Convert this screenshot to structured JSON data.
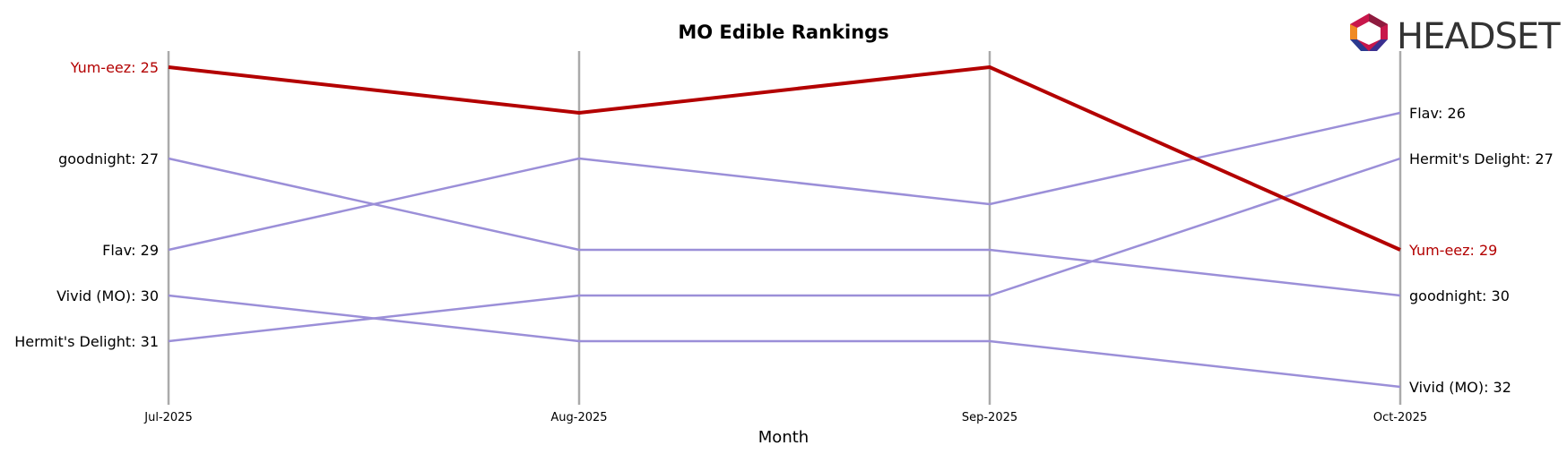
{
  "chart_data": {
    "type": "line",
    "title": "MO Edible Rankings",
    "xlabel": "Month",
    "ylabel": "",
    "categories": [
      "Jul-2025",
      "Aug-2025",
      "Sep-2025",
      "Oct-2025"
    ],
    "y_axis": {
      "inverted": true,
      "range": [
        25,
        32
      ],
      "visible": false
    },
    "grid": false,
    "highlight_color": "#b30000",
    "other_color": "#9b8fd8",
    "axis_line_color": "#aaaaaa",
    "series": [
      {
        "name": "Yum-eez",
        "highlight": true,
        "values": [
          25,
          26,
          25,
          29
        ]
      },
      {
        "name": "goodnight",
        "highlight": false,
        "values": [
          27,
          29,
          29,
          30
        ]
      },
      {
        "name": "Flav",
        "highlight": false,
        "values": [
          29,
          27,
          28,
          26
        ]
      },
      {
        "name": "Vivid (MO)",
        "highlight": false,
        "values": [
          30,
          31,
          31,
          32
        ]
      },
      {
        "name": "Hermit's Delight",
        "highlight": false,
        "values": [
          31,
          30,
          30,
          27
        ]
      }
    ],
    "left_labels": [
      {
        "series": "Yum-eez",
        "text": "Yum-eez: 25"
      },
      {
        "series": "goodnight",
        "text": "goodnight: 27"
      },
      {
        "series": "Flav",
        "text": "Flav: 29"
      },
      {
        "series": "Vivid (MO)",
        "text": "Vivid (MO): 30"
      },
      {
        "series": "Hermit's Delight",
        "text": "Hermit's Delight: 31"
      }
    ],
    "right_labels": [
      {
        "series": "Flav",
        "text": "Flav: 26"
      },
      {
        "series": "Hermit's Delight",
        "text": "Hermit's Delight: 27"
      },
      {
        "series": "Yum-eez",
        "text": "Yum-eez: 29"
      },
      {
        "series": "goodnight",
        "text": "goodnight: 30"
      },
      {
        "series": "Vivid (MO)",
        "text": "Vivid (MO): 32"
      }
    ]
  },
  "logo": {
    "text": "HEADSET",
    "icon": "headset-logo-icon"
  }
}
